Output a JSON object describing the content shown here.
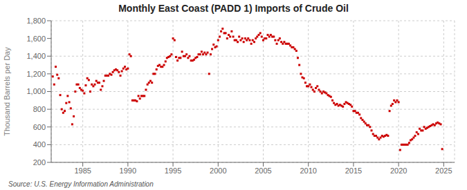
{
  "chart_data": {
    "type": "scatter",
    "title": "Monthly East Coast (PADD 1) Imports of Crude Oil",
    "y_label": "Thousand Barrels per Day",
    "annotations": [
      "Source: U.S. Energy Information Administration"
    ],
    "color": "#cc0000",
    "marker": "square",
    "grid": true,
    "xlim": [
      1981.5,
      2026.2
    ],
    "xticks": [
      1985,
      1990,
      1995,
      2000,
      2005,
      2010,
      2015,
      2020,
      2025
    ],
    "ylim": [
      200,
      1800
    ],
    "yticks": [
      200,
      400,
      600,
      800,
      {
        "value": 1000,
        "label": "1,000"
      },
      {
        "value": 1200,
        "label": "1,200"
      },
      {
        "value": 1400,
        "label": "1,400"
      },
      {
        "value": 1600,
        "label": "1,600"
      },
      {
        "value": 1800,
        "label": "1,800"
      }
    ],
    "x": [
      1981.67,
      1981.83,
      1982.0,
      1982.17,
      1982.33,
      1982.5,
      1982.67,
      1982.83,
      1983.0,
      1983.17,
      1983.33,
      1983.5,
      1983.67,
      1983.83,
      1984.0,
      1984.17,
      1984.33,
      1984.5,
      1984.67,
      1984.83,
      1985.0,
      1985.17,
      1985.33,
      1985.5,
      1985.67,
      1985.83,
      1986.0,
      1986.17,
      1986.33,
      1986.5,
      1986.67,
      1986.83,
      1987.0,
      1987.17,
      1987.33,
      1987.5,
      1987.67,
      1987.83,
      1988.0,
      1988.17,
      1988.33,
      1988.5,
      1988.67,
      1988.83,
      1989.0,
      1989.17,
      1989.33,
      1989.5,
      1989.67,
      1989.83,
      1990.0,
      1990.17,
      1990.33,
      1990.5,
      1990.67,
      1990.83,
      1991.0,
      1991.17,
      1991.33,
      1991.5,
      1991.67,
      1991.83,
      1992.0,
      1992.17,
      1992.33,
      1992.5,
      1992.67,
      1992.83,
      1993.0,
      1993.17,
      1993.33,
      1993.5,
      1993.67,
      1993.83,
      1994.0,
      1994.17,
      1994.33,
      1994.5,
      1994.67,
      1994.83,
      1995.0,
      1995.17,
      1995.33,
      1995.5,
      1995.67,
      1995.83,
      1996.0,
      1996.17,
      1996.33,
      1996.5,
      1996.67,
      1996.83,
      1997.0,
      1997.17,
      1997.33,
      1997.5,
      1997.67,
      1997.83,
      1998.0,
      1998.17,
      1998.33,
      1998.5,
      1998.67,
      1998.83,
      1999.0,
      1999.17,
      1999.33,
      1999.5,
      1999.67,
      1999.83,
      2000.0,
      2000.17,
      2000.33,
      2000.5,
      2000.67,
      2000.83,
      2001.0,
      2001.17,
      2001.33,
      2001.5,
      2001.67,
      2001.83,
      2002.0,
      2002.17,
      2002.33,
      2002.5,
      2002.67,
      2002.83,
      2003.0,
      2003.17,
      2003.33,
      2003.5,
      2003.67,
      2003.83,
      2004.0,
      2004.17,
      2004.33,
      2004.5,
      2004.67,
      2004.83,
      2005.0,
      2005.17,
      2005.33,
      2005.5,
      2005.67,
      2005.83,
      2006.0,
      2006.17,
      2006.33,
      2006.5,
      2006.67,
      2006.83,
      2007.0,
      2007.17,
      2007.33,
      2007.5,
      2007.67,
      2007.83,
      2008.0,
      2008.17,
      2008.33,
      2008.5,
      2008.67,
      2008.83,
      2009.0,
      2009.17,
      2009.33,
      2009.5,
      2009.67,
      2009.83,
      2010.0,
      2010.17,
      2010.33,
      2010.5,
      2010.67,
      2010.83,
      2011.0,
      2011.17,
      2011.33,
      2011.5,
      2011.67,
      2011.83,
      2012.0,
      2012.17,
      2012.33,
      2012.5,
      2012.67,
      2012.83,
      2013.0,
      2013.17,
      2013.33,
      2013.5,
      2013.67,
      2013.83,
      2014.0,
      2014.17,
      2014.33,
      2014.5,
      2014.67,
      2014.83,
      2015.0,
      2015.17,
      2015.33,
      2015.5,
      2015.67,
      2015.83,
      2016.0,
      2016.17,
      2016.33,
      2016.5,
      2016.67,
      2016.83,
      2017.0,
      2017.17,
      2017.33,
      2017.5,
      2017.67,
      2017.83,
      2018.0,
      2018.17,
      2018.33,
      2018.5,
      2018.67,
      2018.83,
      2019.0,
      2019.17,
      2019.33,
      2019.5,
      2019.67,
      2019.83,
      2020.0,
      2020.17,
      2020.33,
      2020.5,
      2020.67,
      2020.83,
      2021.0,
      2021.17,
      2021.33,
      2021.5,
      2021.67,
      2021.83,
      2022.0,
      2022.17,
      2022.33,
      2022.5,
      2022.67,
      2022.83,
      2023.0,
      2023.17,
      2023.33,
      2023.5,
      2023.67,
      2023.83,
      2024.0,
      2024.17,
      2024.33,
      2024.5,
      2024.67,
      2024.83
    ],
    "values": [
      1170,
      1080,
      1280,
      1190,
      1150,
      960,
      800,
      760,
      780,
      870,
      950,
      880,
      810,
      630,
      720,
      1000,
      1080,
      1080,
      1040,
      1020,
      1010,
      980,
      1070,
      1150,
      1130,
      1000,
      1080,
      1060,
      1080,
      1120,
      1100,
      1100,
      1020,
      1060,
      1120,
      1180,
      1180,
      1180,
      1200,
      1190,
      1220,
      1240,
      1250,
      1240,
      1220,
      1180,
      1230,
      1260,
      1280,
      1250,
      1260,
      1420,
      1400,
      900,
      900,
      900,
      890,
      950,
      920,
      950,
      950,
      950,
      1020,
      1080,
      1100,
      1120,
      1100,
      1200,
      1200,
      1250,
      1290,
      1300,
      1280,
      1280,
      1300,
      1340,
      1380,
      1390,
      1400,
      1420,
      1600,
      1580,
      1390,
      1350,
      1380,
      1380,
      1450,
      1400,
      1400,
      1420,
      1380,
      1400,
      1350,
      1350,
      1360,
      1380,
      1390,
      1420,
      1420,
      1450,
      1420,
      1440,
      1420,
      1440,
      1200,
      1420,
      1480,
      1530,
      1500,
      1510,
      1580,
      1620,
      1680,
      1710,
      1660,
      1660,
      1600,
      1640,
      1620,
      1680,
      1620,
      1580,
      1580,
      1560,
      1620,
      1580,
      1600,
      1560,
      1600,
      1580,
      1600,
      1580,
      1540,
      1580,
      1560,
      1600,
      1620,
      1640,
      1660,
      1620,
      1580,
      1600,
      1600,
      1640,
      1620,
      1640,
      1620,
      1620,
      1580,
      1540,
      1580,
      1600,
      1560,
      1540,
      1560,
      1540,
      1540,
      1540,
      1520,
      1500,
      1500,
      1480,
      1460,
      1380,
      1300,
      1200,
      1160,
      1150,
      1100,
      1060,
      1060,
      1080,
      1050,
      1020,
      1000,
      1040,
      1060,
      1020,
      1000,
      980,
      1000,
      990,
      980,
      960,
      950,
      940,
      900,
      870,
      850,
      860,
      840,
      850,
      840,
      830,
      860,
      880,
      870,
      860,
      850,
      830,
      780,
      780,
      760,
      760,
      740,
      700,
      680,
      660,
      640,
      620,
      620,
      600,
      560,
      520,
      500,
      500,
      480,
      460,
      480,
      500,
      490,
      500,
      510,
      500,
      780,
      840,
      860,
      900,
      880,
      900,
      880,
      340,
      400,
      400,
      400,
      400,
      400,
      420,
      450,
      460,
      480,
      500,
      540,
      520,
      580,
      560,
      560,
      600,
      580,
      590,
      600,
      610,
      620,
      630,
      620,
      640,
      650,
      640,
      630,
      350
    ]
  }
}
